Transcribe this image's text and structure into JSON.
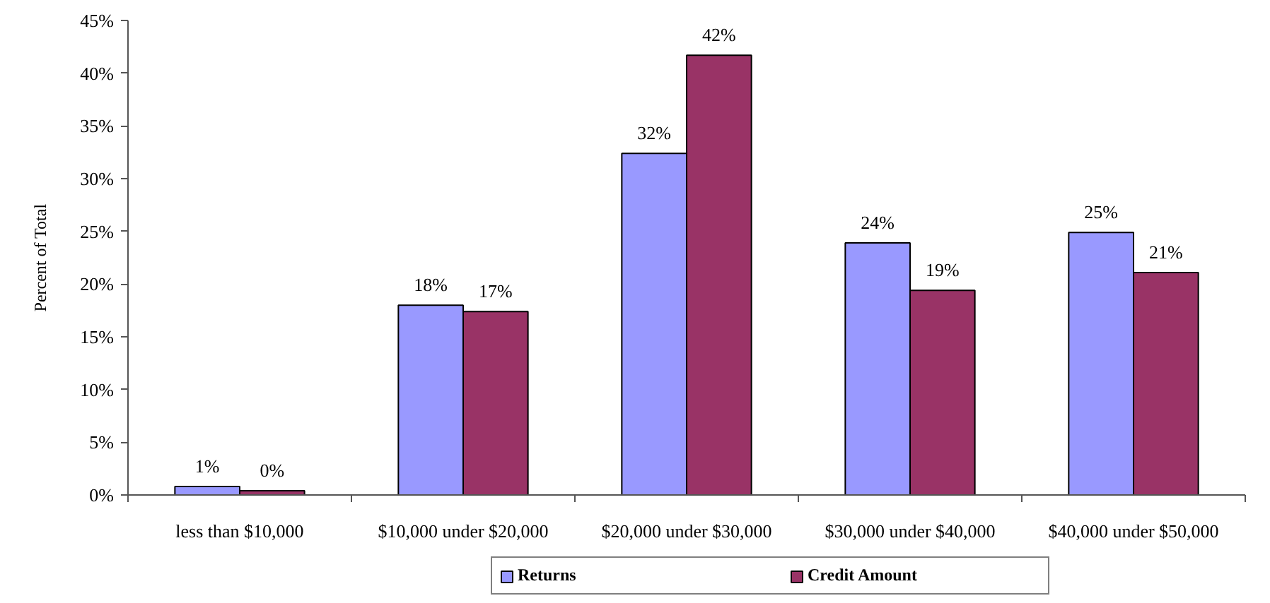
{
  "chart_data": {
    "type": "bar",
    "ylabel": "Percent of Total",
    "categories": [
      "less than $10,000",
      "$10,000 under $20,000",
      "$20,000 under $30,000",
      "$30,000 under $40,000",
      "$40,000 under $50,000"
    ],
    "series": [
      {
        "name": "Returns",
        "color": "#9999ff",
        "values": [
          0.8,
          18.0,
          32.4,
          23.9,
          24.9
        ],
        "value_labels": [
          "1%",
          "18%",
          "32%",
          "24%",
          "25%"
        ]
      },
      {
        "name": "Credit Amount",
        "color": "#993366",
        "values": [
          0.4,
          17.4,
          41.7,
          19.4,
          21.1
        ],
        "value_labels": [
          "0%",
          "17%",
          "42%",
          "19%",
          "21%"
        ]
      }
    ],
    "ylim": [
      0,
      45
    ],
    "yticks": [
      {
        "value": 0,
        "label": "0%"
      },
      {
        "value": 5,
        "label": "5%"
      },
      {
        "value": 10,
        "label": "10%"
      },
      {
        "value": 15,
        "label": "15%"
      },
      {
        "value": 20,
        "label": "20%"
      },
      {
        "value": 25,
        "label": "25%"
      },
      {
        "value": 30,
        "label": "30%"
      },
      {
        "value": 35,
        "label": "35%"
      },
      {
        "value": 40,
        "label": "40%"
      },
      {
        "value": 45,
        "label": "45%"
      }
    ],
    "grid": false,
    "legend": "bottom"
  }
}
